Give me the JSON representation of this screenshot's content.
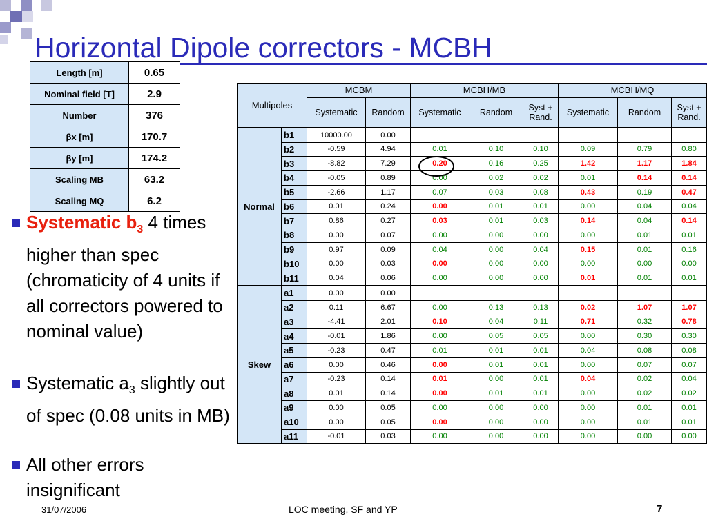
{
  "slide": {
    "title": "Horizontal Dipole correctors - MCBH",
    "footer_date": "31/07/2006",
    "footer_center": "LOC meeting, SF and YP",
    "page_number": "7"
  },
  "params": [
    {
      "label": "Length [m]",
      "value": "0.65"
    },
    {
      "label": "Nominal field [T]",
      "value": "2.9"
    },
    {
      "label": "Number",
      "value": "376"
    },
    {
      "label": "βx [m]",
      "value": "170.7"
    },
    {
      "label": "βy [m]",
      "value": "174.2"
    },
    {
      "label": "Scaling MB",
      "value": "63.2"
    },
    {
      "label": "Scaling MQ",
      "value": "6.2"
    }
  ],
  "multipoles": {
    "corner": "Multipoles",
    "groups": [
      "MCBM",
      "MCBH/MB",
      "MCBH/MQ"
    ],
    "sub_headers": [
      "Systematic",
      "Random",
      "Systematic",
      "Random",
      "Syst + Rand.",
      "Systematic",
      "Random",
      "Syst + Rand."
    ],
    "normal_label": "Normal",
    "skew_label": "Skew",
    "normal_rows": [
      {
        "h": "b1",
        "c": [
          "10000.00",
          "0.00",
          "",
          "",
          "",
          "",
          "",
          ""
        ]
      },
      {
        "h": "b2",
        "c": [
          "-0.59",
          "4.94",
          "0.01",
          "0.10",
          "0.10",
          "0.09",
          "0.79",
          "0.80"
        ]
      },
      {
        "h": "b3",
        "c": [
          "-8.82",
          "7.29",
          "0.20",
          "0.16",
          "0.25",
          "1.42",
          "1.17",
          "1.84"
        ]
      },
      {
        "h": "b4",
        "c": [
          "-0.05",
          "0.89",
          "0.00",
          "0.02",
          "0.02",
          "0.01",
          "0.14",
          "0.14"
        ]
      },
      {
        "h": "b5",
        "c": [
          "-2.66",
          "1.17",
          "0.07",
          "0.03",
          "0.08",
          "0.43",
          "0.19",
          "0.47"
        ]
      },
      {
        "h": "b6",
        "c": [
          "0.01",
          "0.24",
          "0.00",
          "0.01",
          "0.01",
          "0.00",
          "0.04",
          "0.04"
        ]
      },
      {
        "h": "b7",
        "c": [
          "0.86",
          "0.27",
          "0.03",
          "0.01",
          "0.03",
          "0.14",
          "0.04",
          "0.14"
        ]
      },
      {
        "h": "b8",
        "c": [
          "0.00",
          "0.07",
          "0.00",
          "0.00",
          "0.00",
          "0.00",
          "0.01",
          "0.01"
        ]
      },
      {
        "h": "b9",
        "c": [
          "0.97",
          "0.09",
          "0.04",
          "0.00",
          "0.04",
          "0.15",
          "0.01",
          "0.16"
        ]
      },
      {
        "h": "b10",
        "c": [
          "0.00",
          "0.03",
          "0.00",
          "0.00",
          "0.00",
          "0.00",
          "0.00",
          "0.00"
        ]
      },
      {
        "h": "b11",
        "c": [
          "0.04",
          "0.06",
          "0.00",
          "0.00",
          "0.00",
          "0.01",
          "0.01",
          "0.01"
        ]
      }
    ],
    "skew_rows": [
      {
        "h": "a1",
        "c": [
          "0.00",
          "0.00",
          "",
          "",
          "",
          "",
          "",
          ""
        ]
      },
      {
        "h": "a2",
        "c": [
          "0.11",
          "6.67",
          "0.00",
          "0.13",
          "0.13",
          "0.02",
          "1.07",
          "1.07"
        ]
      },
      {
        "h": "a3",
        "c": [
          "-4.41",
          "2.01",
          "0.10",
          "0.04",
          "0.11",
          "0.71",
          "0.32",
          "0.78"
        ]
      },
      {
        "h": "a4",
        "c": [
          "-0.01",
          "1.86",
          "0.00",
          "0.05",
          "0.05",
          "0.00",
          "0.30",
          "0.30"
        ]
      },
      {
        "h": "a5",
        "c": [
          "-0.23",
          "0.47",
          "0.01",
          "0.01",
          "0.01",
          "0.04",
          "0.08",
          "0.08"
        ]
      },
      {
        "h": "a6",
        "c": [
          "0.00",
          "0.46",
          "0.00",
          "0.01",
          "0.01",
          "0.00",
          "0.07",
          "0.07"
        ]
      },
      {
        "h": "a7",
        "c": [
          "-0.23",
          "0.14",
          "0.01",
          "0.00",
          "0.01",
          "0.04",
          "0.02",
          "0.04"
        ]
      },
      {
        "h": "a8",
        "c": [
          "0.01",
          "0.14",
          "0.00",
          "0.01",
          "0.01",
          "0.00",
          "0.02",
          "0.02"
        ]
      },
      {
        "h": "a9",
        "c": [
          "0.00",
          "0.05",
          "0.00",
          "0.00",
          "0.00",
          "0.00",
          "0.01",
          "0.01"
        ]
      },
      {
        "h": "a10",
        "c": [
          "0.00",
          "0.05",
          "0.00",
          "0.00",
          "0.00",
          "0.00",
          "0.01",
          "0.01"
        ]
      },
      {
        "h": "a11",
        "c": [
          "-0.01",
          "0.03",
          "0.00",
          "0.00",
          "0.00",
          "0.00",
          "0.00",
          "0.00"
        ]
      }
    ],
    "red_cells": {
      "b3": [
        2,
        5,
        6,
        7
      ],
      "b5": [
        5,
        7
      ],
      "b6": [
        2
      ],
      "b7": [
        2,
        5,
        7
      ],
      "b9": [
        5
      ],
      "b10": [
        2
      ],
      "b11": [
        5
      ],
      "b4": [
        6,
        7
      ],
      "a2": [
        5,
        6,
        7
      ],
      "a3": [
        2,
        5,
        7
      ],
      "a6": [
        2
      ],
      "a7": [
        2,
        5
      ],
      "a8": [
        2
      ],
      "a10": [
        2
      ]
    }
  },
  "bullets": {
    "b1_red": "Systematic b",
    "b1_sub": "3",
    "b1_rest": " 4 times higher than spec (chromaticity of 4 units if all correctors powered to nominal value)",
    "b2_pre": "Systematic a",
    "b2_sub": "3",
    "b2_rest": " slightly out of spec (0.08 units in MB)",
    "b3": "All other errors insignificant"
  },
  "colors": {
    "accent": "#2a2ab8",
    "header_fill": "#d4e6f7",
    "highlight_red": "#ff0000",
    "ok_green": "#008000"
  }
}
